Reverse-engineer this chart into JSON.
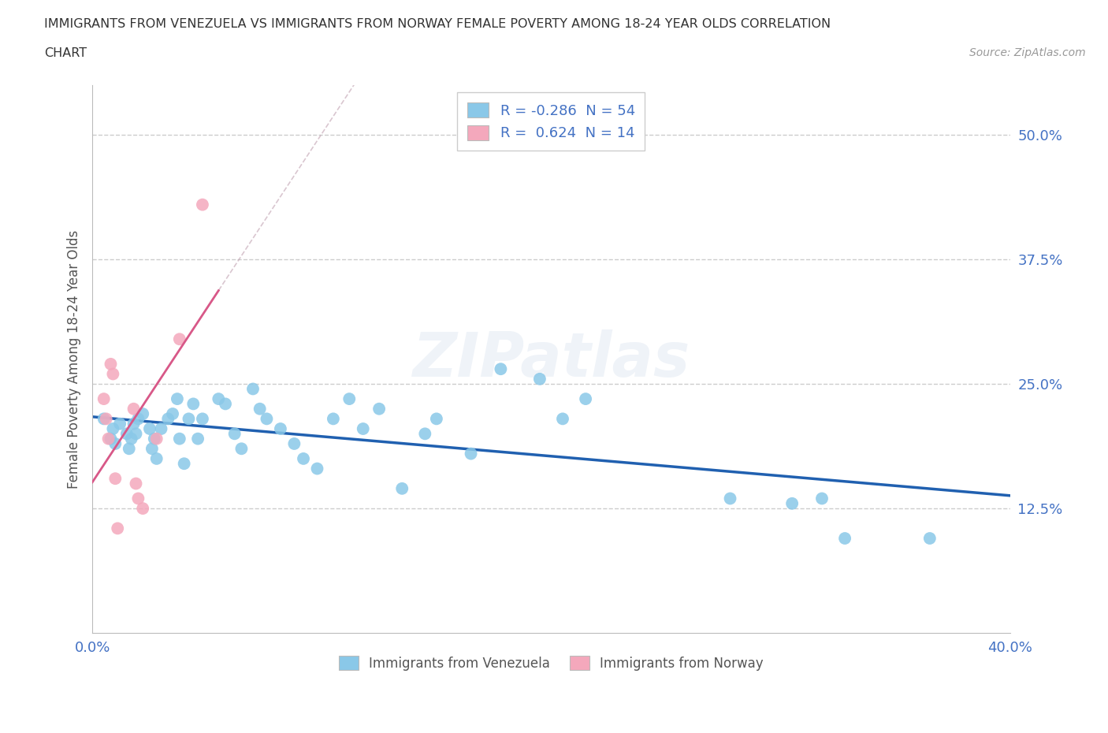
{
  "title_line1": "IMMIGRANTS FROM VENEZUELA VS IMMIGRANTS FROM NORWAY FEMALE POVERTY AMONG 18-24 YEAR OLDS CORRELATION",
  "title_line2": "CHART",
  "source": "Source: ZipAtlas.com",
  "ylabel": "Female Poverty Among 18-24 Year Olds",
  "xlim": [
    0.0,
    0.4
  ],
  "ylim": [
    0.0,
    0.55
  ],
  "yticks": [
    0.125,
    0.25,
    0.375,
    0.5
  ],
  "ytick_labels": [
    "12.5%",
    "25.0%",
    "37.5%",
    "50.0%"
  ],
  "xticks": [
    0.0,
    0.1,
    0.2,
    0.3,
    0.4
  ],
  "xtick_labels": [
    "0.0%",
    "",
    "",
    "",
    "40.0%"
  ],
  "legend_r1_R": "-0.286",
  "legend_r1_N": "54",
  "legend_r2_R": "0.624",
  "legend_r2_N": "14",
  "color_venezuela": "#8AC8E8",
  "color_norway": "#F4A8BC",
  "line_color_venezuela": "#2060B0",
  "line_color_norway": "#D85888",
  "line_color_norway_dash": "#C0A0B0",
  "watermark": "ZIPatlas",
  "bottom_label_venezuela": "Immigrants from Venezuela",
  "bottom_label_norway": "Immigrants from Norway",
  "venezuela_x": [
    0.005,
    0.008,
    0.009,
    0.01,
    0.012,
    0.015,
    0.016,
    0.017,
    0.018,
    0.019,
    0.02,
    0.022,
    0.025,
    0.026,
    0.027,
    0.028,
    0.03,
    0.033,
    0.035,
    0.037,
    0.038,
    0.04,
    0.042,
    0.044,
    0.046,
    0.048,
    0.055,
    0.058,
    0.062,
    0.065,
    0.07,
    0.073,
    0.076,
    0.082,
    0.088,
    0.092,
    0.098,
    0.105,
    0.112,
    0.118,
    0.125,
    0.135,
    0.145,
    0.15,
    0.165,
    0.178,
    0.195,
    0.205,
    0.215,
    0.278,
    0.305,
    0.318,
    0.328,
    0.365
  ],
  "venezuela_y": [
    0.215,
    0.195,
    0.205,
    0.19,
    0.21,
    0.2,
    0.185,
    0.195,
    0.21,
    0.2,
    0.215,
    0.22,
    0.205,
    0.185,
    0.195,
    0.175,
    0.205,
    0.215,
    0.22,
    0.235,
    0.195,
    0.17,
    0.215,
    0.23,
    0.195,
    0.215,
    0.235,
    0.23,
    0.2,
    0.185,
    0.245,
    0.225,
    0.215,
    0.205,
    0.19,
    0.175,
    0.165,
    0.215,
    0.235,
    0.205,
    0.225,
    0.145,
    0.2,
    0.215,
    0.18,
    0.265,
    0.255,
    0.215,
    0.235,
    0.135,
    0.13,
    0.135,
    0.095,
    0.095
  ],
  "norway_x": [
    0.005,
    0.006,
    0.007,
    0.008,
    0.009,
    0.01,
    0.011,
    0.018,
    0.019,
    0.02,
    0.022,
    0.028,
    0.038,
    0.048
  ],
  "norway_y": [
    0.235,
    0.215,
    0.195,
    0.27,
    0.26,
    0.155,
    0.105,
    0.225,
    0.15,
    0.135,
    0.125,
    0.195,
    0.295,
    0.43
  ]
}
